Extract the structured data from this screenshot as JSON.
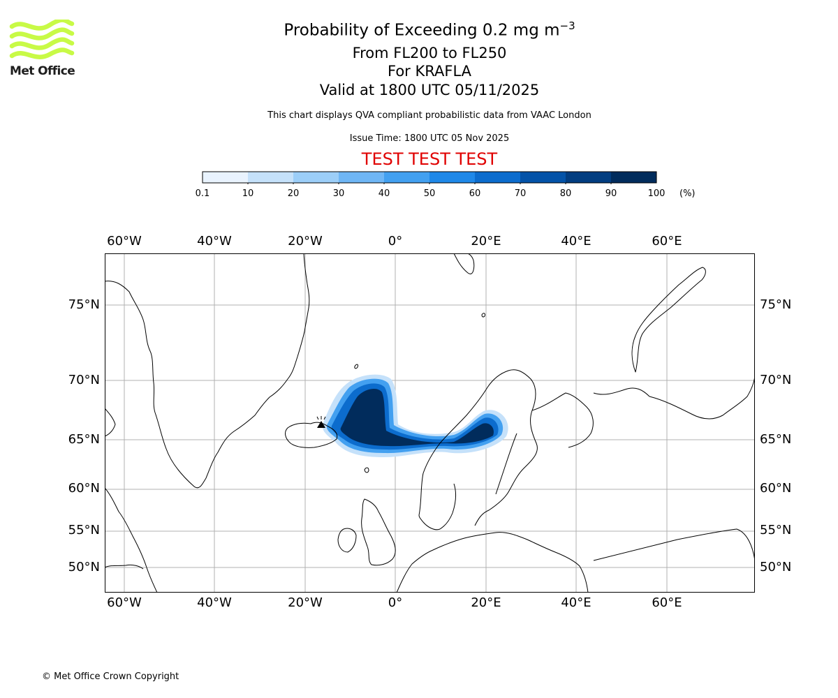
{
  "logo": {
    "text": "Met Office",
    "color": "#c8fa46"
  },
  "header": {
    "title": "Probability of Exceeding 0.2 mg m",
    "title_exponent": "−3",
    "level_range": "From FL200 to FL250",
    "volcano": "For KRAFLA",
    "valid_time": "Valid at 1800 UTC 05/11/2025",
    "description": "This chart displays QVA compliant probabilistic data from VAAC London",
    "issue_time": "Issue Time: 1800 UTC 05 Nov 2025",
    "test_banner": "TEST TEST TEST",
    "test_banner_color": "#e00000"
  },
  "colorbar": {
    "ticks": [
      "0.1",
      "10",
      "20",
      "30",
      "40",
      "50",
      "60",
      "70",
      "80",
      "90",
      "100"
    ],
    "colors": [
      "#e9f3fe",
      "#c5e1fa",
      "#9ccef8",
      "#6fb6f5",
      "#43a0f0",
      "#1f88e8",
      "#0c6ccd",
      "#0453a8",
      "#023d80",
      "#012c5c"
    ],
    "unit": "(%)"
  },
  "map": {
    "lon_labels": [
      "60°W",
      "40°W",
      "20°W",
      "0°",
      "20°E",
      "40°E",
      "60°E"
    ],
    "lat_labels": [
      "75°N",
      "70°N",
      "65°N",
      "60°N",
      "55°N",
      "50°N"
    ],
    "plume_colors": {
      "light": "#c5e1fa",
      "mid": "#43a0f0",
      "strong": "#0c6ccd",
      "core": "#012c5c"
    }
  },
  "footer": {
    "copyright": "© Met Office Crown Copyright"
  }
}
